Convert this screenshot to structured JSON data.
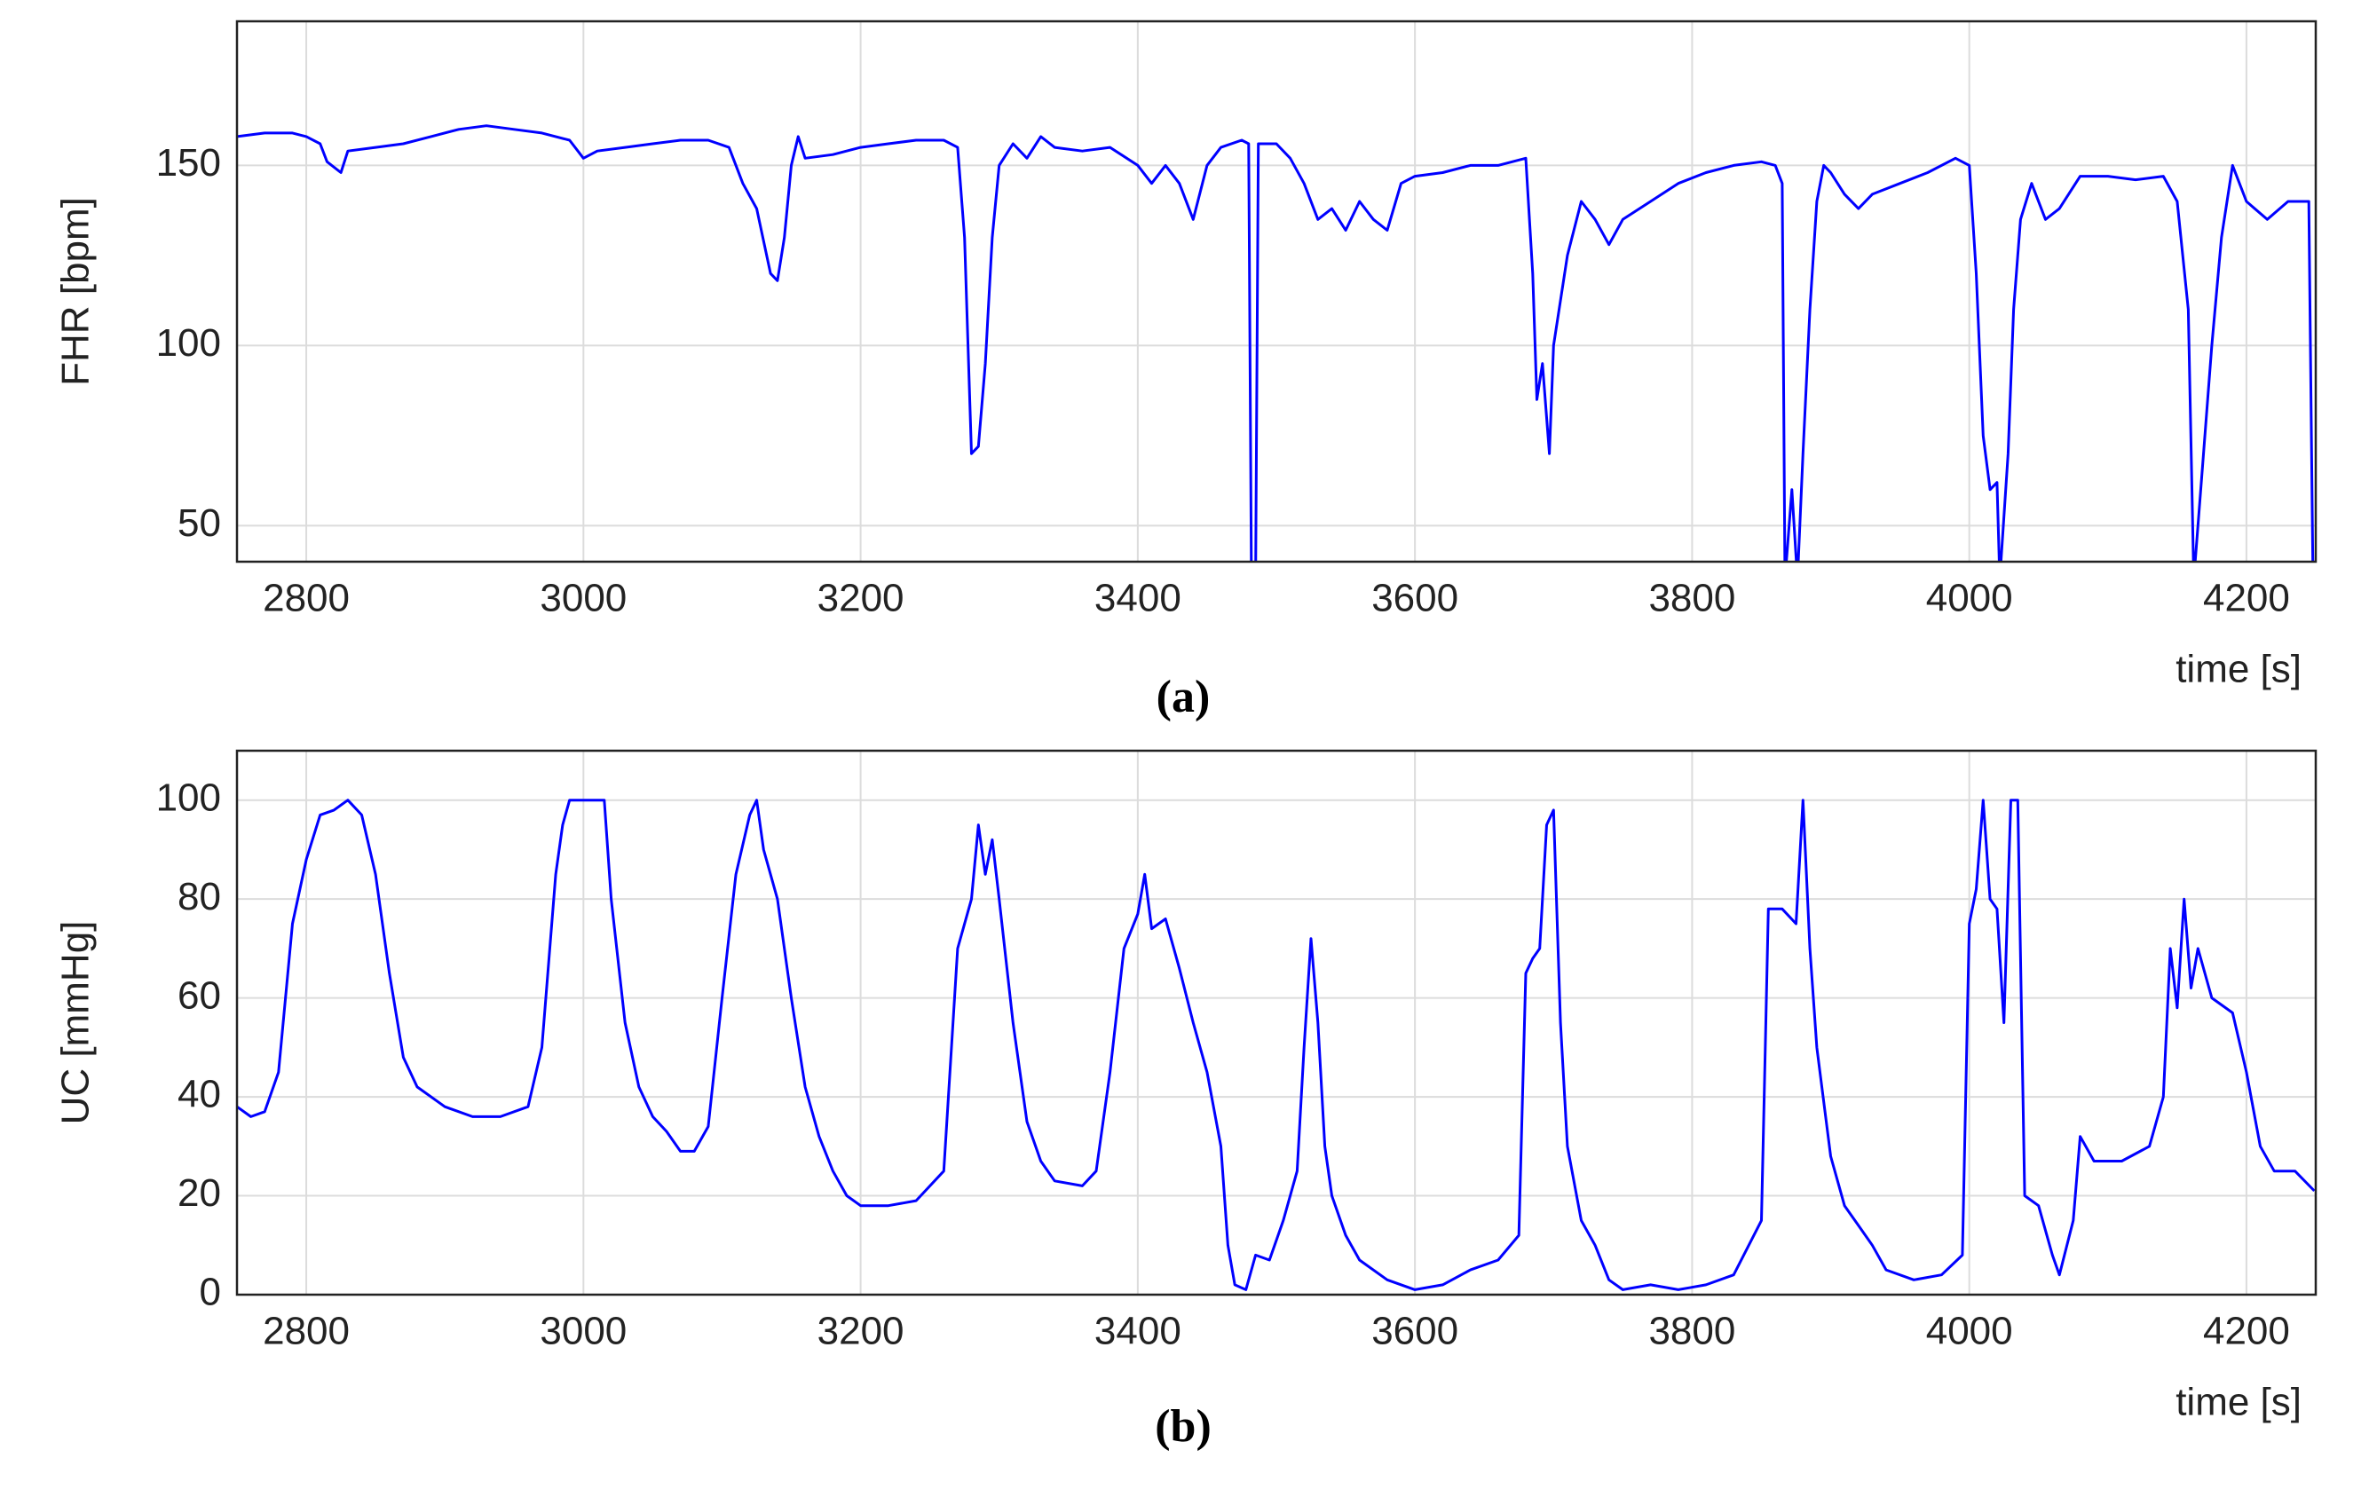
{
  "chart_data": [
    {
      "type": "line",
      "ylabel": "FHR [bpm]",
      "xlabel": "time [s]",
      "caption": "(a)",
      "color": "#0000ff",
      "grid": true,
      "xlim": [
        2750,
        4250
      ],
      "xticks": [
        2800,
        3000,
        3200,
        3400,
        3600,
        3800,
        4000,
        4200
      ],
      "ylim": [
        40,
        190
      ],
      "yticks": [
        50,
        100,
        150
      ],
      "x": [
        2750,
        2770,
        2790,
        2800,
        2810,
        2815,
        2825,
        2830,
        2850,
        2870,
        2890,
        2910,
        2930,
        2950,
        2970,
        2990,
        3000,
        3010,
        3030,
        3050,
        3070,
        3090,
        3105,
        3115,
        3125,
        3135,
        3140,
        3145,
        3150,
        3155,
        3160,
        3180,
        3200,
        3220,
        3240,
        3260,
        3270,
        3275,
        3280,
        3285,
        3290,
        3295,
        3300,
        3310,
        3320,
        3330,
        3340,
        3360,
        3380,
        3400,
        3410,
        3420,
        3430,
        3440,
        3450,
        3460,
        3475,
        3480,
        3482,
        3485,
        3487,
        3500,
        3510,
        3520,
        3530,
        3540,
        3550,
        3560,
        3570,
        3580,
        3590,
        3600,
        3620,
        3640,
        3660,
        3680,
        3685,
        3688,
        3692,
        3697,
        3700,
        3710,
        3720,
        3730,
        3740,
        3750,
        3770,
        3790,
        3810,
        3830,
        3850,
        3860,
        3865,
        3867,
        3872,
        3876,
        3880,
        3885,
        3890,
        3895,
        3900,
        3910,
        3920,
        3930,
        3950,
        3970,
        3990,
        4000,
        4005,
        4010,
        4015,
        4020,
        4022,
        4028,
        4032,
        4037,
        4045,
        4055,
        4065,
        4080,
        4100,
        4120,
        4140,
        4150,
        4158,
        4162,
        4168,
        4175,
        4182,
        4190,
        4200,
        4215,
        4230,
        4245,
        4248
      ],
      "values": [
        158,
        159,
        159,
        158,
        156,
        151,
        148,
        154,
        155,
        156,
        158,
        160,
        161,
        160,
        159,
        157,
        152,
        154,
        155,
        156,
        157,
        157,
        155,
        145,
        138,
        120,
        118,
        130,
        150,
        158,
        152,
        153,
        155,
        156,
        157,
        157,
        155,
        130,
        70,
        72,
        95,
        130,
        150,
        156,
        152,
        158,
        155,
        154,
        155,
        150,
        145,
        150,
        145,
        135,
        150,
        155,
        157,
        156,
        35,
        35,
        156,
        156,
        152,
        145,
        135,
        138,
        132,
        140,
        135,
        132,
        145,
        147,
        148,
        150,
        150,
        152,
        120,
        85,
        95,
        70,
        100,
        125,
        140,
        135,
        128,
        135,
        140,
        145,
        148,
        150,
        151,
        150,
        145,
        35,
        60,
        35,
        70,
        110,
        140,
        150,
        148,
        142,
        138,
        142,
        145,
        148,
        152,
        150,
        120,
        75,
        60,
        62,
        35,
        70,
        110,
        135,
        145,
        135,
        138,
        147,
        147,
        146,
        147,
        140,
        110,
        35,
        65,
        100,
        130,
        150,
        140,
        135,
        140,
        140,
        35
      ]
    },
    {
      "type": "line",
      "ylabel": "UC [mmHg]",
      "xlabel": "time [s]",
      "caption": "(b)",
      "color": "#0000ff",
      "grid": true,
      "xlim": [
        2750,
        4250
      ],
      "xticks": [
        2800,
        3000,
        3200,
        3400,
        3600,
        3800,
        4000,
        4200
      ],
      "ylim": [
        0,
        110
      ],
      "yticks": [
        0,
        20,
        40,
        60,
        80,
        100
      ],
      "x": [
        2750,
        2760,
        2770,
        2780,
        2790,
        2800,
        2810,
        2820,
        2830,
        2840,
        2850,
        2860,
        2870,
        2880,
        2900,
        2920,
        2940,
        2960,
        2970,
        2980,
        2985,
        2990,
        3000,
        3015,
        3020,
        3030,
        3040,
        3050,
        3060,
        3070,
        3080,
        3090,
        3100,
        3110,
        3120,
        3125,
        3130,
        3140,
        3150,
        3160,
        3170,
        3180,
        3190,
        3200,
        3220,
        3240,
        3260,
        3270,
        3280,
        3285,
        3290,
        3295,
        3300,
        3310,
        3320,
        3330,
        3340,
        3360,
        3370,
        3380,
        3390,
        3400,
        3405,
        3410,
        3420,
        3430,
        3440,
        3450,
        3460,
        3465,
        3470,
        3478,
        3485,
        3495,
        3505,
        3515,
        3520,
        3525,
        3530,
        3535,
        3540,
        3550,
        3560,
        3580,
        3600,
        3620,
        3640,
        3660,
        3675,
        3680,
        3685,
        3690,
        3695,
        3700,
        3705,
        3710,
        3720,
        3730,
        3740,
        3750,
        3770,
        3790,
        3810,
        3830,
        3850,
        3855,
        3865,
        3875,
        3880,
        3885,
        3890,
        3900,
        3910,
        3920,
        3930,
        3940,
        3960,
        3980,
        3995,
        4000,
        4005,
        4010,
        4015,
        4020,
        4025,
        4030,
        4035,
        4040,
        4050,
        4060,
        4065,
        4075,
        4080,
        4090,
        4110,
        4130,
        4140,
        4145,
        4150,
        4155,
        4160,
        4165,
        4175,
        4190,
        4200,
        4210,
        4220,
        4235,
        4249
      ],
      "values": [
        38,
        36,
        37,
        45,
        75,
        88,
        97,
        98,
        100,
        97,
        85,
        65,
        48,
        42,
        38,
        36,
        36,
        38,
        50,
        85,
        95,
        100,
        100,
        100,
        80,
        55,
        42,
        36,
        33,
        29,
        29,
        34,
        60,
        85,
        97,
        100,
        90,
        80,
        60,
        42,
        32,
        25,
        20,
        18,
        18,
        19,
        25,
        70,
        80,
        95,
        85,
        92,
        80,
        55,
        35,
        27,
        23,
        22,
        25,
        45,
        70,
        77,
        85,
        74,
        76,
        66,
        55,
        45,
        30,
        10,
        2,
        1,
        8,
        7,
        15,
        25,
        50,
        72,
        55,
        30,
        20,
        12,
        7,
        3,
        1,
        2,
        5,
        7,
        12,
        65,
        68,
        70,
        95,
        98,
        55,
        30,
        15,
        10,
        3,
        1,
        2,
        1,
        2,
        4,
        15,
        78,
        78,
        75,
        100,
        70,
        50,
        28,
        18,
        14,
        10,
        5,
        3,
        4,
        8,
        75,
        82,
        100,
        80,
        78,
        55,
        100,
        100,
        20,
        18,
        8,
        4,
        15,
        32,
        27,
        27,
        30,
        40,
        70,
        58,
        80,
        62,
        70,
        60,
        57,
        45,
        30,
        25,
        25,
        21
      ]
    }
  ]
}
